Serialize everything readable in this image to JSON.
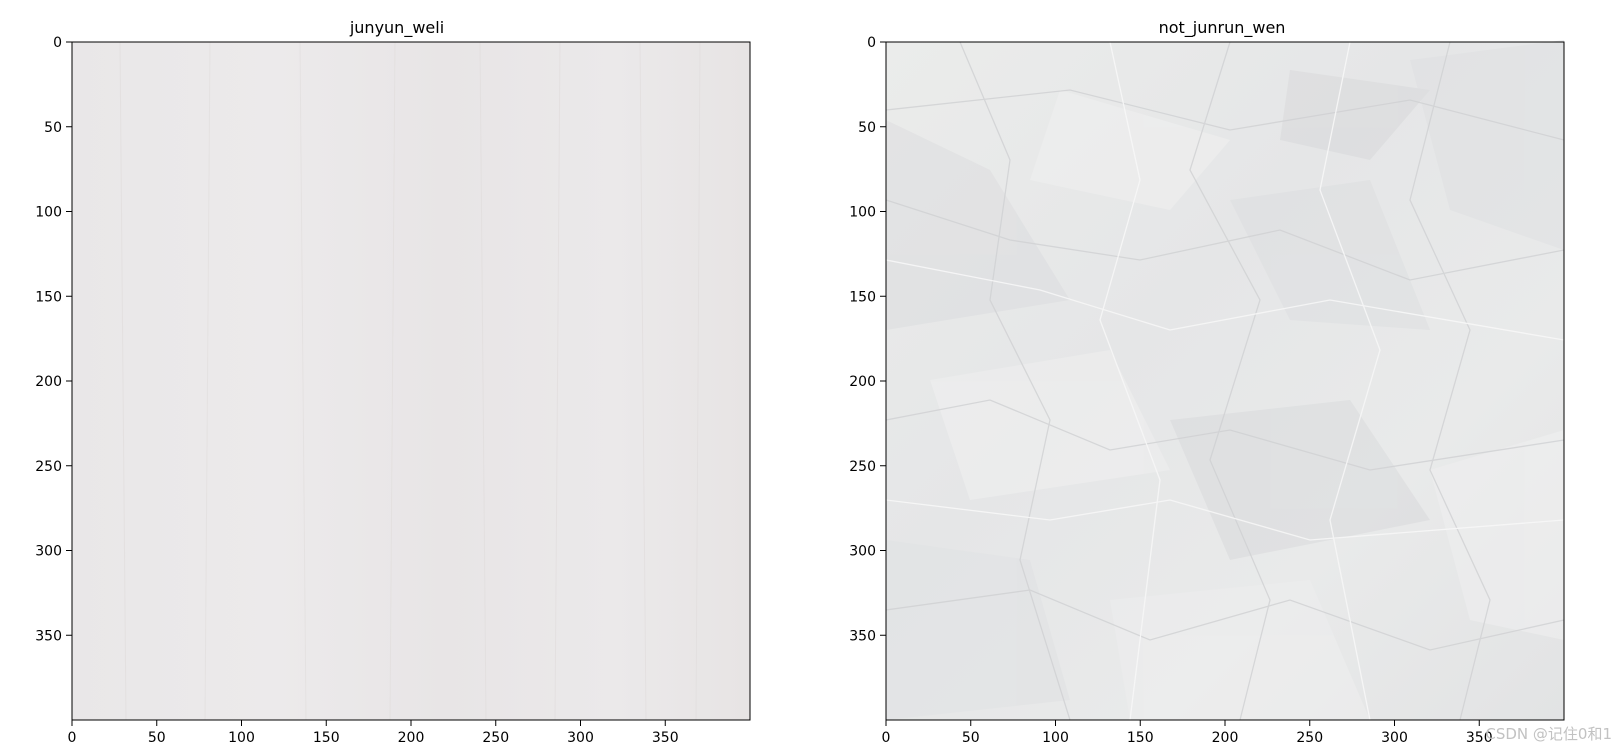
{
  "figure": {
    "panels": [
      {
        "title": "junyun_weli",
        "image_extent": [
          0,
          400
        ],
        "image_desc_icon": "smooth-paper-texture-icon",
        "x_ticks": [
          "0",
          "50",
          "100",
          "150",
          "200",
          "250",
          "300",
          "350"
        ],
        "y_ticks": [
          "0",
          "50",
          "100",
          "150",
          "200",
          "250",
          "300",
          "350"
        ]
      },
      {
        "title": "not_junrun_wen",
        "image_extent": [
          0,
          400
        ],
        "image_desc_icon": "crumpled-paper-texture-icon",
        "x_ticks": [
          "0",
          "50",
          "100",
          "150",
          "200",
          "250",
          "300",
          "350"
        ],
        "y_ticks": [
          "0",
          "50",
          "100",
          "150",
          "200",
          "250",
          "300",
          "350"
        ]
      }
    ]
  },
  "watermark": "CSDN @记住0和1",
  "colors": {
    "background": "#ffffff",
    "smooth_paper": "#ece9ea",
    "crumpled_paper": "#e7e8e8",
    "axis": "#000000"
  }
}
